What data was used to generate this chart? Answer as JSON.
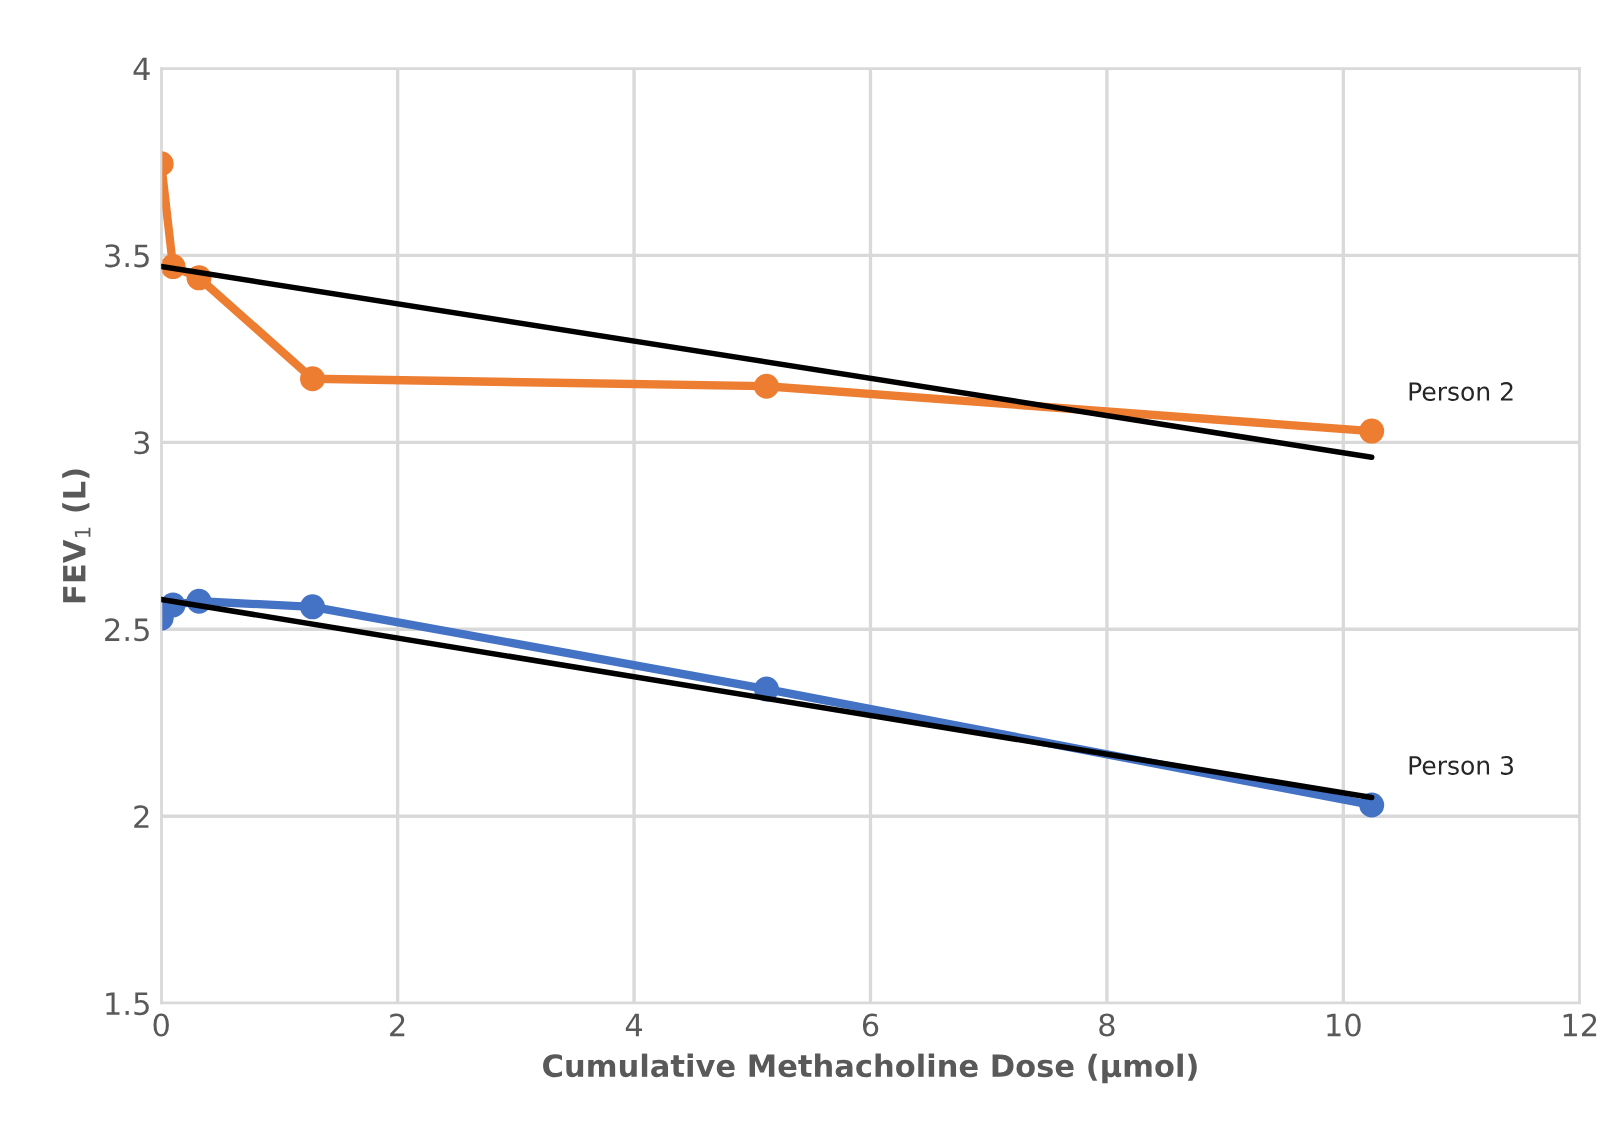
{
  "chart_data": {
    "type": "line",
    "xlabel": "Cumulative Methacholine Dose (µmol)",
    "ylabel": "FEV$_{1}$ (L)",
    "series": [
      {
        "name": "Person 2",
        "color": "#ed7d31",
        "marker": "circle",
        "x": [
          0,
          0.1,
          0.32,
          1.28,
          5.12,
          10.24
        ],
        "values": [
          3.745,
          3.47,
          3.44,
          3.17,
          3.15,
          3.03
        ]
      },
      {
        "name": "Person 3",
        "color": "#4472c4",
        "marker": "circle",
        "x": [
          0,
          0.1,
          0.32,
          1.28,
          5.12,
          10.24
        ],
        "values": [
          2.53,
          2.565,
          2.575,
          2.56,
          2.34,
          2.03
        ]
      },
      {
        "type": "line",
        "color": "#000000",
        "marker": "none",
        "x": [
          0,
          10.24
        ],
        "values": [
          3.47,
          2.96
        ]
      },
      {
        "type": "line",
        "color": "#000000",
        "marker": "none",
        "x": [
          0,
          10.24
        ],
        "values": [
          2.58,
          2.05
        ]
      }
    ],
    "xlim": [
      0,
      12
    ],
    "xticks": [
      0,
      2,
      4,
      6,
      8,
      10,
      12
    ],
    "ylim": [
      1.5,
      4
    ],
    "yticks": [
      1.5,
      2,
      2.5,
      3,
      3.5,
      4
    ],
    "grid": true,
    "legend": false
  }
}
